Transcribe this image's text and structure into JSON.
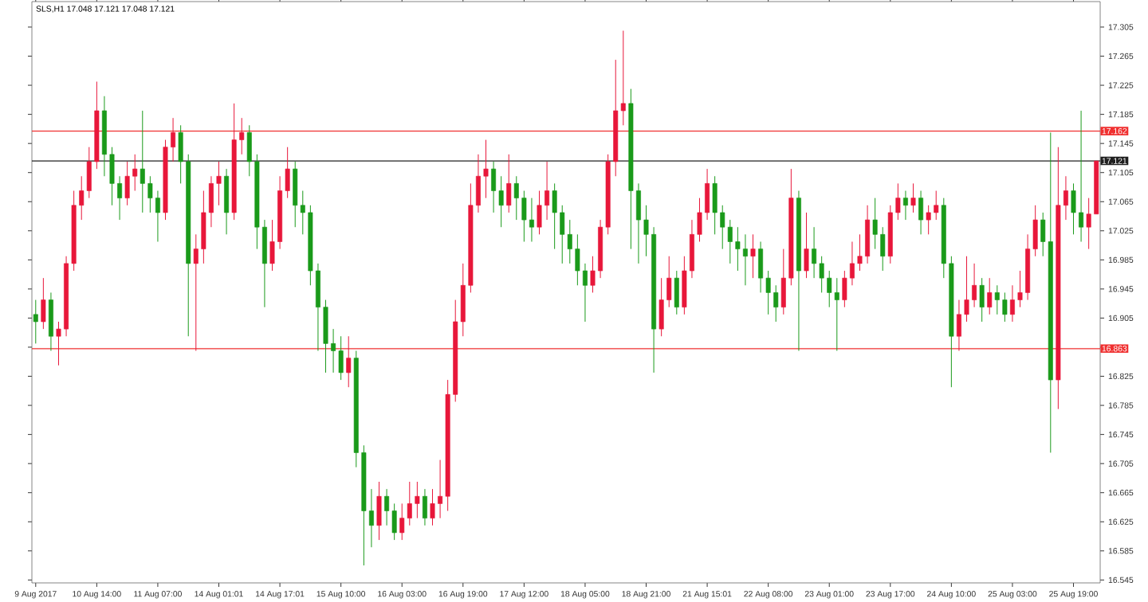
{
  "chart_data": {
    "type": "candlestick",
    "title": "SLS,H1  17.048 17.121 17.048 17.121",
    "categories": [
      "9 Aug 2017",
      null,
      null,
      null,
      null,
      null,
      null,
      null,
      "10 Aug 14:00",
      null,
      null,
      null,
      null,
      null,
      null,
      null,
      "11 Aug 07:00",
      null,
      null,
      null,
      null,
      null,
      null,
      null,
      "14 Aug 01:01",
      null,
      null,
      null,
      null,
      null,
      null,
      null,
      "14 Aug 17:01",
      null,
      null,
      null,
      null,
      null,
      null,
      null,
      "15 Aug 10:00",
      null,
      null,
      null,
      null,
      null,
      null,
      null,
      "16 Aug 03:00",
      null,
      null,
      null,
      null,
      null,
      null,
      null,
      "16 Aug 19:00",
      null,
      null,
      null,
      null,
      null,
      null,
      null,
      "17 Aug 12:00",
      null,
      null,
      null,
      null,
      null,
      null,
      null,
      "18 Aug 05:00",
      null,
      null,
      null,
      null,
      null,
      null,
      null,
      "18 Aug 21:00",
      null,
      null,
      null,
      null,
      null,
      null,
      null,
      "21 Aug 15:01",
      null,
      null,
      null,
      null,
      null,
      null,
      null,
      "22 Aug 08:00",
      null,
      null,
      null,
      null,
      null,
      null,
      null,
      "23 Aug 01:00",
      null,
      null,
      null,
      null,
      null,
      null,
      null,
      "23 Aug 17:00",
      null,
      null,
      null,
      null,
      null,
      null,
      null,
      "24 Aug 10:00",
      null,
      null,
      null,
      null,
      null,
      null,
      null,
      "25 Aug 03:00",
      null,
      null,
      null,
      null,
      null,
      null,
      null,
      "25 Aug 19:00",
      null,
      null,
      null
    ],
    "ohlc": [
      [
        16.91,
        16.93,
        16.87,
        16.9
      ],
      [
        16.9,
        16.96,
        16.89,
        16.93
      ],
      [
        16.93,
        16.94,
        16.86,
        16.88
      ],
      [
        16.88,
        16.9,
        16.84,
        16.89
      ],
      [
        16.89,
        16.99,
        16.88,
        16.98
      ],
      [
        16.98,
        17.08,
        16.97,
        17.06
      ],
      [
        17.06,
        17.1,
        17.04,
        17.08
      ],
      [
        17.08,
        17.14,
        17.07,
        17.12
      ],
      [
        17.12,
        17.23,
        17.11,
        17.19
      ],
      [
        17.19,
        17.21,
        17.1,
        17.13
      ],
      [
        17.13,
        17.14,
        17.06,
        17.09
      ],
      [
        17.09,
        17.1,
        17.04,
        17.07
      ],
      [
        17.07,
        17.12,
        17.06,
        17.1
      ],
      [
        17.1,
        17.13,
        17.08,
        17.11
      ],
      [
        17.11,
        17.19,
        17.05,
        17.09
      ],
      [
        17.09,
        17.1,
        17.05,
        17.07
      ],
      [
        17.07,
        17.08,
        17.01,
        17.05
      ],
      [
        17.05,
        17.15,
        17.04,
        17.14
      ],
      [
        17.14,
        17.18,
        17.12,
        17.16
      ],
      [
        17.16,
        17.17,
        17.09,
        17.12
      ],
      [
        17.12,
        17.13,
        16.88,
        16.98
      ],
      [
        16.98,
        17.02,
        16.86,
        17.0
      ],
      [
        17.0,
        17.08,
        16.98,
        17.05
      ],
      [
        17.05,
        17.1,
        17.03,
        17.09
      ],
      [
        17.09,
        17.12,
        17.06,
        17.1
      ],
      [
        17.1,
        17.11,
        17.02,
        17.05
      ],
      [
        17.05,
        17.2,
        17.04,
        17.15
      ],
      [
        17.15,
        17.18,
        17.13,
        17.16
      ],
      [
        17.16,
        17.17,
        17.1,
        17.12
      ],
      [
        17.12,
        17.13,
        17.0,
        17.03
      ],
      [
        17.03,
        17.04,
        16.92,
        16.98
      ],
      [
        16.98,
        17.04,
        16.97,
        17.01
      ],
      [
        17.01,
        17.1,
        17.0,
        17.08
      ],
      [
        17.08,
        17.14,
        17.07,
        17.11
      ],
      [
        17.11,
        17.12,
        17.03,
        17.06
      ],
      [
        17.06,
        17.08,
        17.02,
        17.05
      ],
      [
        17.05,
        17.06,
        16.95,
        16.97
      ],
      [
        16.97,
        16.98,
        16.86,
        16.92
      ],
      [
        16.92,
        16.93,
        16.83,
        16.87
      ],
      [
        16.87,
        16.89,
        16.83,
        16.86
      ],
      [
        16.86,
        16.88,
        16.82,
        16.83
      ],
      [
        16.83,
        16.88,
        16.81,
        16.85
      ],
      [
        16.85,
        16.86,
        16.7,
        16.72
      ],
      [
        16.72,
        16.73,
        16.565,
        16.64
      ],
      [
        16.64,
        16.67,
        16.59,
        16.62
      ],
      [
        16.62,
        16.68,
        16.6,
        16.66
      ],
      [
        16.66,
        16.67,
        16.62,
        16.64
      ],
      [
        16.64,
        16.65,
        16.6,
        16.61
      ],
      [
        16.61,
        16.65,
        16.6,
        16.63
      ],
      [
        16.63,
        16.68,
        16.62,
        16.65
      ],
      [
        16.65,
        16.68,
        16.63,
        16.66
      ],
      [
        16.66,
        16.67,
        16.62,
        16.63
      ],
      [
        16.63,
        16.67,
        16.62,
        16.65
      ],
      [
        16.65,
        16.71,
        16.63,
        16.66
      ],
      [
        16.66,
        16.82,
        16.64,
        16.8
      ],
      [
        16.8,
        16.93,
        16.79,
        16.9
      ],
      [
        16.9,
        16.98,
        16.88,
        16.95
      ],
      [
        16.95,
        17.09,
        16.94,
        17.06
      ],
      [
        17.06,
        17.13,
        17.05,
        17.1
      ],
      [
        17.1,
        17.15,
        17.07,
        17.11
      ],
      [
        17.11,
        17.12,
        17.05,
        17.08
      ],
      [
        17.08,
        17.1,
        17.03,
        17.06
      ],
      [
        17.06,
        17.13,
        17.05,
        17.09
      ],
      [
        17.09,
        17.1,
        17.04,
        17.07
      ],
      [
        17.07,
        17.08,
        17.01,
        17.04
      ],
      [
        17.04,
        17.07,
        17.01,
        17.03
      ],
      [
        17.03,
        17.08,
        17.02,
        17.06
      ],
      [
        17.06,
        17.12,
        17.04,
        17.08
      ],
      [
        17.08,
        17.09,
        17.0,
        17.05
      ],
      [
        17.05,
        17.06,
        16.98,
        17.02
      ],
      [
        17.02,
        17.04,
        16.98,
        17.0
      ],
      [
        17.0,
        17.02,
        16.95,
        16.97
      ],
      [
        16.97,
        16.98,
        16.9,
        16.95
      ],
      [
        16.95,
        16.99,
        16.94,
        16.97
      ],
      [
        16.97,
        17.04,
        16.96,
        17.03
      ],
      [
        17.03,
        17.13,
        17.02,
        17.12
      ],
      [
        17.12,
        17.26,
        17.1,
        17.19
      ],
      [
        17.19,
        17.3,
        17.17,
        17.2
      ],
      [
        17.2,
        17.22,
        17.0,
        17.08
      ],
      [
        17.08,
        17.09,
        16.98,
        17.04
      ],
      [
        17.04,
        17.06,
        16.99,
        17.02
      ],
      [
        17.02,
        17.03,
        16.83,
        16.89
      ],
      [
        16.89,
        16.96,
        16.88,
        16.93
      ],
      [
        16.93,
        16.99,
        16.92,
        16.96
      ],
      [
        16.96,
        16.97,
        16.91,
        16.92
      ],
      [
        16.92,
        16.99,
        16.91,
        16.97
      ],
      [
        16.97,
        17.04,
        16.96,
        17.02
      ],
      [
        17.02,
        17.07,
        17.01,
        17.05
      ],
      [
        17.05,
        17.11,
        17.04,
        17.09
      ],
      [
        17.09,
        17.1,
        17.02,
        17.05
      ],
      [
        17.05,
        17.06,
        17.0,
        17.03
      ],
      [
        17.03,
        17.04,
        16.98,
        17.01
      ],
      [
        17.01,
        17.03,
        16.97,
        17.0
      ],
      [
        17.0,
        17.02,
        16.95,
        16.99
      ],
      [
        16.99,
        17.02,
        16.96,
        17.0
      ],
      [
        17.0,
        17.01,
        16.94,
        16.96
      ],
      [
        16.96,
        16.97,
        16.91,
        16.94
      ],
      [
        16.94,
        16.95,
        16.9,
        16.92
      ],
      [
        16.92,
        17.0,
        16.91,
        16.96
      ],
      [
        16.96,
        17.11,
        16.95,
        17.07
      ],
      [
        17.07,
        17.08,
        16.86,
        16.97
      ],
      [
        16.97,
        17.05,
        16.96,
        17.0
      ],
      [
        17.0,
        17.03,
        16.96,
        16.98
      ],
      [
        16.98,
        16.99,
        16.94,
        16.96
      ],
      [
        16.96,
        16.97,
        16.92,
        16.94
      ],
      [
        16.94,
        16.96,
        16.86,
        16.93
      ],
      [
        16.93,
        16.97,
        16.92,
        16.96
      ],
      [
        16.96,
        17.01,
        16.95,
        16.98
      ],
      [
        16.98,
        17.02,
        16.97,
        16.99
      ],
      [
        16.99,
        17.06,
        16.98,
        17.04
      ],
      [
        17.04,
        17.07,
        17.0,
        17.02
      ],
      [
        17.02,
        17.03,
        16.97,
        16.99
      ],
      [
        16.99,
        17.06,
        16.98,
        17.05
      ],
      [
        17.05,
        17.09,
        17.04,
        17.07
      ],
      [
        17.07,
        17.08,
        17.04,
        17.06
      ],
      [
        17.06,
        17.09,
        17.05,
        17.07
      ],
      [
        17.07,
        17.08,
        17.02,
        17.04
      ],
      [
        17.04,
        17.06,
        17.02,
        17.05
      ],
      [
        17.05,
        17.08,
        17.04,
        17.06
      ],
      [
        17.06,
        17.07,
        16.96,
        16.98
      ],
      [
        16.98,
        16.99,
        16.81,
        16.88
      ],
      [
        16.88,
        16.93,
        16.86,
        16.91
      ],
      [
        16.91,
        16.99,
        16.9,
        16.93
      ],
      [
        16.93,
        16.98,
        16.92,
        16.95
      ],
      [
        16.95,
        16.96,
        16.9,
        16.92
      ],
      [
        16.92,
        16.96,
        16.91,
        16.94
      ],
      [
        16.94,
        16.95,
        16.91,
        16.93
      ],
      [
        16.93,
        16.94,
        16.9,
        16.91
      ],
      [
        16.91,
        16.95,
        16.9,
        16.93
      ],
      [
        16.93,
        16.97,
        16.92,
        16.94
      ],
      [
        16.94,
        17.02,
        16.93,
        17.0
      ],
      [
        17.0,
        17.06,
        16.99,
        17.04
      ],
      [
        17.04,
        17.05,
        16.99,
        17.01
      ],
      [
        17.01,
        17.16,
        16.72,
        16.82
      ],
      [
        16.82,
        17.14,
        16.78,
        17.06
      ],
      [
        17.06,
        17.1,
        17.04,
        17.08
      ],
      [
        17.08,
        17.09,
        17.02,
        17.05
      ],
      [
        17.05,
        17.19,
        17.01,
        17.03
      ],
      [
        17.03,
        17.07,
        17.0,
        17.048
      ],
      [
        17.048,
        17.121,
        17.048,
        17.121
      ]
    ],
    "colors": [
      "#1a9a1a",
      "#e8173a",
      "#1a9a1a",
      "#e8173a",
      "#e8173a",
      "#e8173a",
      "#e8173a",
      "#e8173a",
      "#e8173a",
      "#1a9a1a",
      "#1a9a1a",
      "#1a9a1a",
      "#e8173a",
      "#e8173a",
      "#1a9a1a",
      "#1a9a1a",
      "#1a9a1a",
      "#e8173a",
      "#e8173a",
      "#1a9a1a",
      "#1a9a1a",
      "#e8173a",
      "#e8173a",
      "#e8173a",
      "#e8173a",
      "#1a9a1a",
      "#e8173a",
      "#e8173a",
      "#1a9a1a",
      "#1a9a1a",
      "#1a9a1a",
      "#e8173a",
      "#e8173a",
      "#e8173a",
      "#1a9a1a",
      "#1a9a1a",
      "#1a9a1a",
      "#1a9a1a",
      "#1a9a1a",
      "#1a9a1a",
      "#1a9a1a",
      "#e8173a",
      "#1a9a1a",
      "#1a9a1a",
      "#1a9a1a",
      "#e8173a",
      "#1a9a1a",
      "#1a9a1a",
      "#e8173a",
      "#e8173a",
      "#e8173a",
      "#1a9a1a",
      "#e8173a",
      "#e8173a",
      "#e8173a",
      "#e8173a",
      "#e8173a",
      "#e8173a",
      "#e8173a",
      "#e8173a",
      "#1a9a1a",
      "#1a9a1a",
      "#e8173a",
      "#1a9a1a",
      "#1a9a1a",
      "#1a9a1a",
      "#e8173a",
      "#e8173a",
      "#1a9a1a",
      "#1a9a1a",
      "#1a9a1a",
      "#1a9a1a",
      "#1a9a1a",
      "#e8173a",
      "#e8173a",
      "#e8173a",
      "#e8173a",
      "#e8173a",
      "#1a9a1a",
      "#1a9a1a",
      "#1a9a1a",
      "#1a9a1a",
      "#e8173a",
      "#e8173a",
      "#1a9a1a",
      "#e8173a",
      "#e8173a",
      "#e8173a",
      "#e8173a",
      "#1a9a1a",
      "#1a9a1a",
      "#1a9a1a",
      "#1a9a1a",
      "#1a9a1a",
      "#e8173a",
      "#1a9a1a",
      "#1a9a1a",
      "#1a9a1a",
      "#e8173a",
      "#e8173a",
      "#1a9a1a",
      "#e8173a",
      "#1a9a1a",
      "#1a9a1a",
      "#1a9a1a",
      "#1a9a1a",
      "#e8173a",
      "#e8173a",
      "#e8173a",
      "#e8173a",
      "#1a9a1a",
      "#1a9a1a",
      "#e8173a",
      "#e8173a",
      "#1a9a1a",
      "#e8173a",
      "#1a9a1a",
      "#e8173a",
      "#e8173a",
      "#1a9a1a",
      "#1a9a1a",
      "#e8173a",
      "#e8173a",
      "#e8173a",
      "#1a9a1a",
      "#e8173a",
      "#1a9a1a",
      "#1a9a1a",
      "#e8173a",
      "#e8173a",
      "#e8173a",
      "#e8173a",
      "#1a9a1a",
      "#1a9a1a",
      "#e8173a",
      "#e8173a",
      "#1a9a1a",
      "#1a9a1a",
      "#e8173a",
      "#e8173a"
    ],
    "ylim": [
      16.541,
      17.34
    ],
    "yticks": [
      16.545,
      16.585,
      16.625,
      16.665,
      16.705,
      16.745,
      16.785,
      16.825,
      {
        "value": 16.865,
        "label": null
      },
      16.905,
      16.945,
      16.985,
      17.025,
      17.065,
      17.105,
      17.145,
      17.185,
      17.225,
      17.265,
      17.305
    ],
    "ref_lines": [
      {
        "axis": "y",
        "value": 17.162,
        "label": "17.162",
        "color": "#f03030"
      },
      {
        "axis": "y",
        "value": 17.121,
        "label": "17.121",
        "color": "#202020"
      },
      {
        "axis": "y",
        "value": 16.863,
        "label": "16.863",
        "color": "#f03030"
      }
    ]
  }
}
